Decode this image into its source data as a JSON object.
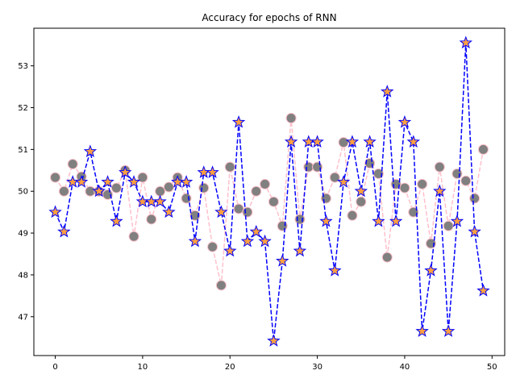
{
  "chart_data": {
    "type": "line",
    "title": "Accuracy for epochs of RNN",
    "xlabel": "",
    "ylabel": "",
    "xlim": [
      -2.45,
      51.45
    ],
    "ylim": [
      46.07,
      53.9
    ],
    "x_ticks": [
      0,
      10,
      20,
      30,
      40,
      50
    ],
    "y_ticks": [
      47,
      48,
      49,
      50,
      51,
      52,
      53
    ],
    "grid": false,
    "legend": "none",
    "series": [
      {
        "style": "dashed-line-circle-markers",
        "line_color": "#ffc0cb",
        "marker_fill": "#808080",
        "marker_edge": "#ffc0cb",
        "x": [
          0,
          1,
          2,
          3,
          4,
          5,
          6,
          7,
          8,
          9,
          10,
          11,
          12,
          13,
          14,
          15,
          16,
          17,
          18,
          19,
          20,
          21,
          22,
          23,
          24,
          25,
          26,
          27,
          28,
          29,
          30,
          31,
          32,
          33,
          34,
          35,
          36,
          37,
          38,
          39,
          40,
          41,
          42,
          43,
          44,
          45,
          46,
          47,
          48,
          49
        ],
        "values": [
          50.33,
          50.0,
          50.65,
          50.35,
          50.0,
          50.0,
          49.92,
          50.08,
          50.5,
          48.92,
          50.33,
          49.33,
          50.0,
          50.1,
          50.33,
          49.83,
          49.42,
          50.08,
          48.67,
          47.75,
          50.58,
          49.58,
          49.5,
          50.0,
          50.17,
          49.75,
          49.17,
          51.75,
          49.33,
          50.58,
          50.58,
          49.83,
          50.33,
          51.17,
          49.42,
          49.75,
          50.67,
          50.42,
          48.42,
          50.17,
          50.08,
          49.5,
          50.17,
          48.75,
          50.58,
          49.17,
          50.42,
          50.25,
          49.83,
          51.0
        ]
      },
      {
        "style": "dashed-line-star-markers",
        "line_color": "#0000ff",
        "marker_fill": "#ffa040",
        "marker_edge": "#0000ff",
        "x": [
          0,
          1,
          2,
          3,
          4,
          5,
          6,
          7,
          8,
          9,
          10,
          11,
          12,
          13,
          14,
          15,
          16,
          17,
          18,
          19,
          20,
          21,
          22,
          23,
          24,
          25,
          26,
          27,
          28,
          29,
          30,
          31,
          32,
          33,
          34,
          35,
          36,
          37,
          38,
          39,
          40,
          41,
          42,
          43,
          44,
          45,
          46,
          47,
          48,
          49
        ],
        "values": [
          49.5,
          49.03,
          50.22,
          50.22,
          50.95,
          50.0,
          50.22,
          49.28,
          50.45,
          50.22,
          49.75,
          49.75,
          49.75,
          49.5,
          50.22,
          50.22,
          48.8,
          50.45,
          50.45,
          49.5,
          48.57,
          51.65,
          48.8,
          49.03,
          48.8,
          46.42,
          48.33,
          51.18,
          48.57,
          51.18,
          51.18,
          49.28,
          48.1,
          50.22,
          51.18,
          50.0,
          51.18,
          49.28,
          52.38,
          49.28,
          51.65,
          51.18,
          46.65,
          48.1,
          50.0,
          46.65,
          49.28,
          53.55,
          49.03,
          47.62
        ]
      }
    ]
  }
}
